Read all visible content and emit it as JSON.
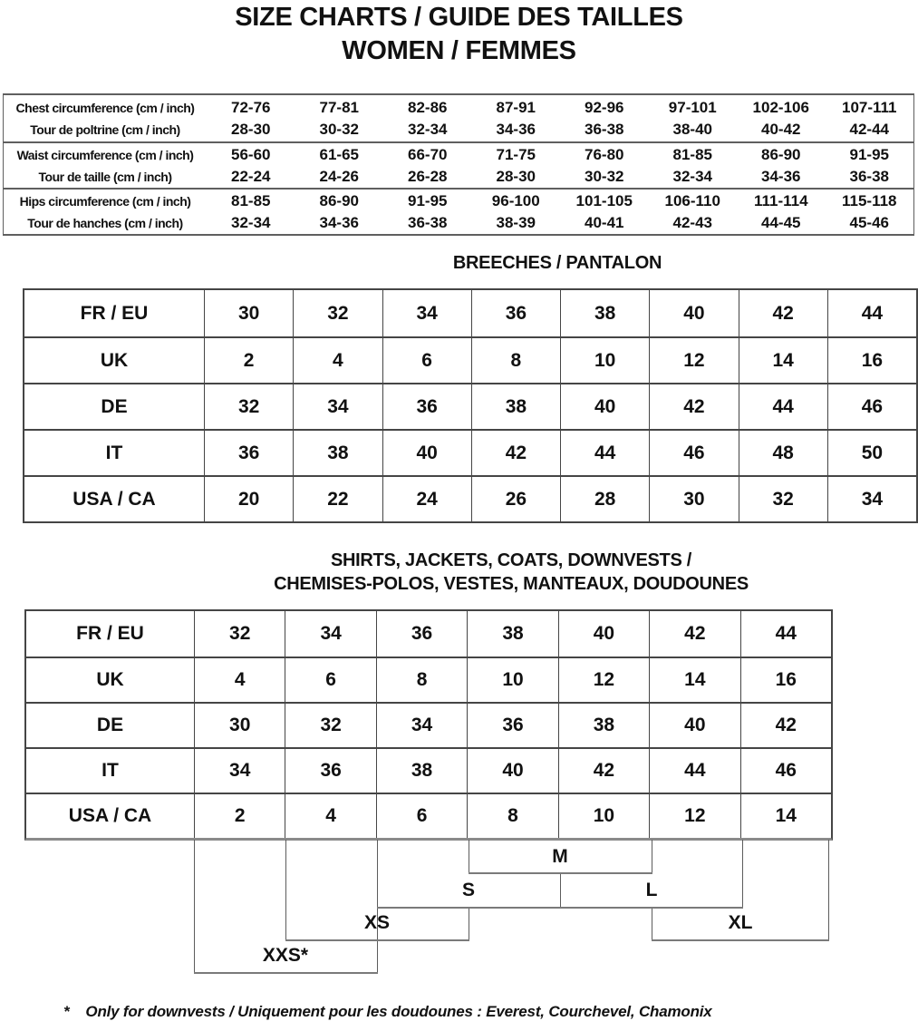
{
  "title": {
    "line1": "SIZE CHARTS / GUIDE DES TAILLES",
    "line2": "WOMEN / FEMMES"
  },
  "measurements_table": {
    "rows": [
      {
        "label_en": "Chest circumference (cm / inch)",
        "label_fr": "Tour de poltrine (cm / inch)",
        "cm": [
          "72-76",
          "77-81",
          "82-86",
          "87-91",
          "92-96",
          "97-101",
          "102-106",
          "107-111"
        ],
        "inch": [
          "28-30",
          "30-32",
          "32-34",
          "34-36",
          "36-38",
          "38-40",
          "40-42",
          "42-44"
        ]
      },
      {
        "label_en": "Waist circumference (cm / inch)",
        "label_fr": "Tour de taille (cm / inch)",
        "cm": [
          "56-60",
          "61-65",
          "66-70",
          "71-75",
          "76-80",
          "81-85",
          "86-90",
          "91-95"
        ],
        "inch": [
          "22-24",
          "24-26",
          "26-28",
          "28-30",
          "30-32",
          "32-34",
          "34-36",
          "36-38"
        ]
      },
      {
        "label_en": "Hips circumference (cm / inch)",
        "label_fr": "Tour de hanches (cm / inch)",
        "cm": [
          "81-85",
          "86-90",
          "91-95",
          "96-100",
          "101-105",
          "106-110",
          "111-114",
          "115-118"
        ],
        "inch": [
          "32-34",
          "34-36",
          "36-38",
          "38-39",
          "40-41",
          "42-43",
          "44-45",
          "45-46"
        ]
      }
    ]
  },
  "breeches_table": {
    "heading": "BREECHES / PANTALON",
    "rows": [
      {
        "label": "FR / EU",
        "values": [
          "30",
          "32",
          "34",
          "36",
          "38",
          "40",
          "42",
          "44"
        ]
      },
      {
        "label": "UK",
        "values": [
          "2",
          "4",
          "6",
          "8",
          "10",
          "12",
          "14",
          "16"
        ]
      },
      {
        "label": "DE",
        "values": [
          "32",
          "34",
          "36",
          "38",
          "40",
          "42",
          "44",
          "46"
        ]
      },
      {
        "label": "IT",
        "values": [
          "36",
          "38",
          "40",
          "42",
          "44",
          "46",
          "48",
          "50"
        ]
      },
      {
        "label": "USA / CA",
        "values": [
          "20",
          "22",
          "24",
          "26",
          "28",
          "30",
          "32",
          "34"
        ]
      }
    ]
  },
  "shirts_table": {
    "heading_line1": "SHIRTS, JACKETS, COATS, DOWNVESTS /",
    "heading_line2": "CHEMISES-POLOS, VESTES, MANTEAUX, DOUDOUNES",
    "rows": [
      {
        "label": "FR / EU",
        "values": [
          "32",
          "34",
          "36",
          "38",
          "40",
          "42",
          "44"
        ]
      },
      {
        "label": "UK",
        "values": [
          "4",
          "6",
          "8",
          "10",
          "12",
          "14",
          "16"
        ]
      },
      {
        "label": "DE",
        "values": [
          "30",
          "32",
          "34",
          "36",
          "38",
          "40",
          "42"
        ]
      },
      {
        "label": "IT",
        "values": [
          "34",
          "36",
          "38",
          "40",
          "42",
          "44",
          "46"
        ]
      },
      {
        "label": "USA / CA",
        "values": [
          "2",
          "4",
          "6",
          "8",
          "10",
          "12",
          "14"
        ]
      }
    ]
  },
  "size_brackets": {
    "xxs": "XXS*",
    "xs": "XS",
    "s": "S",
    "m": "M",
    "l": "L",
    "xl": "XL"
  },
  "footnote": {
    "marker": "*",
    "text": "Only for downvests / Uniquement pour les doudounes : Everest, Courchevel, Chamonix"
  },
  "colors": {
    "text": "#111111",
    "size_table_border": "#454545",
    "measurements_border": "#5f5f5f",
    "bracket_line": "#7a7a7a"
  }
}
